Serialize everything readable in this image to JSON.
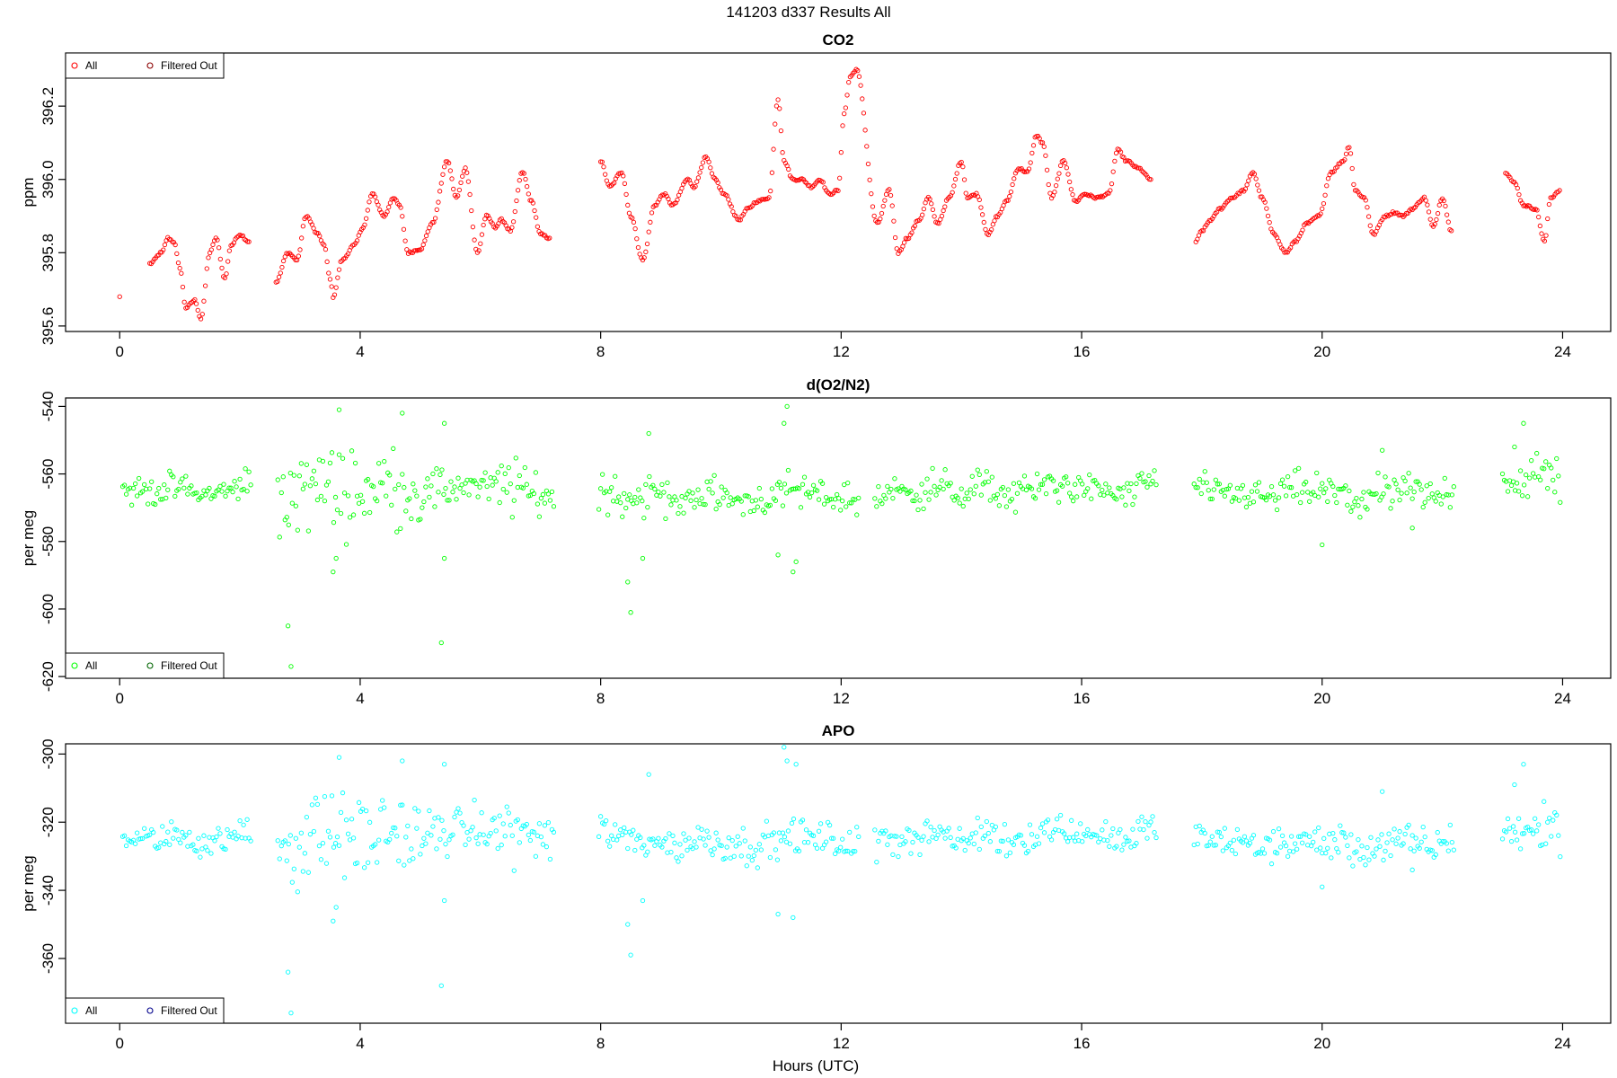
{
  "figure": {
    "title": "141203   d337   Results All",
    "xlabel": "Hours (UTC)"
  },
  "chart_data": [
    {
      "type": "scatter",
      "title": "CO2",
      "xlabel": "",
      "ylabel": "ppm",
      "xlim": [
        -0.9,
        24.8
      ],
      "ylim": [
        395.585,
        396.345
      ],
      "xticks": [
        0,
        4,
        8,
        12,
        16,
        20,
        24
      ],
      "yticks": [
        395.6,
        395.8,
        396.0,
        396.2
      ],
      "ytick_labels": [
        "395.6",
        "395.8",
        "396.0",
        "396.2"
      ],
      "legend": {
        "position": "top-left",
        "entries": [
          {
            "label": "All",
            "color": "#ff0000"
          },
          {
            "label": "Filtered Out",
            "color": "#8b0000"
          }
        ]
      },
      "marker_color": "#ff0000",
      "series": [
        {
          "name": "All",
          "x": [
            0.0,
            0.5,
            0.7,
            0.8,
            0.9,
            1.0,
            1.1,
            1.25,
            1.35,
            1.5,
            1.6,
            1.75,
            1.85,
            2.0,
            2.15,
            2.6,
            2.8,
            2.95,
            3.1,
            3.3,
            3.4,
            3.5,
            3.55,
            3.7,
            3.9,
            4.05,
            4.2,
            4.4,
            4.55,
            4.65,
            4.8,
            5.0,
            5.2,
            5.45,
            5.6,
            5.75,
            5.95,
            6.1,
            6.25,
            6.35,
            6.5,
            6.7,
            6.85,
            7.0,
            7.15,
            8.0,
            8.15,
            8.35,
            8.5,
            8.7,
            8.9,
            9.05,
            9.2,
            9.45,
            9.55,
            9.75,
            9.9,
            10.05,
            10.3,
            10.45,
            10.6,
            10.8,
            10.95,
            11.05,
            11.2,
            11.35,
            11.5,
            11.65,
            11.8,
            11.95,
            12.05,
            12.15,
            12.25,
            12.6,
            12.8,
            12.95,
            13.1,
            13.3,
            13.45,
            13.6,
            13.8,
            14.0,
            14.1,
            14.25,
            14.45,
            14.6,
            14.75,
            14.95,
            15.1,
            15.25,
            15.35,
            15.5,
            15.7,
            15.9,
            16.05,
            16.25,
            16.45,
            16.6,
            16.75,
            16.95,
            17.15,
            17.9,
            18.0,
            18.15,
            18.3,
            18.5,
            18.7,
            18.85,
            19.0,
            19.2,
            19.4,
            19.55,
            19.75,
            19.95,
            20.15,
            20.35,
            20.45,
            20.55,
            20.7,
            20.85,
            21.05,
            21.2,
            21.35,
            21.5,
            21.7,
            21.85,
            22.0,
            22.15,
            23.05,
            23.2,
            23.35,
            23.55,
            23.7,
            23.8,
            23.95
          ],
          "y": [
            395.68,
            395.77,
            395.8,
            395.84,
            395.83,
            395.76,
            395.65,
            395.67,
            395.62,
            395.8,
            395.84,
            395.73,
            395.82,
            395.85,
            395.83,
            395.72,
            395.8,
            395.78,
            395.9,
            395.85,
            395.82,
            395.73,
            395.68,
            395.78,
            395.82,
            395.87,
            395.96,
            395.9,
            395.95,
            395.93,
            395.8,
            395.81,
            395.88,
            396.05,
            395.95,
            396.03,
            395.8,
            395.9,
            395.87,
            395.89,
            395.86,
            396.02,
            395.94,
            395.85,
            395.84,
            396.05,
            395.98,
            396.02,
            395.9,
            395.78,
            395.93,
            395.96,
            395.93,
            396.0,
            395.98,
            396.06,
            396.0,
            395.96,
            395.89,
            395.92,
            395.94,
            395.95,
            396.22,
            396.05,
            396.0,
            396.0,
            395.98,
            396.0,
            395.96,
            395.97,
            396.18,
            396.28,
            396.3,
            395.88,
            395.97,
            395.8,
            395.84,
            395.89,
            395.95,
            395.88,
            395.95,
            396.05,
            395.95,
            395.96,
            395.85,
            395.9,
            395.94,
            396.03,
            396.02,
            396.12,
            396.1,
            395.95,
            396.05,
            395.94,
            395.96,
            395.95,
            395.96,
            396.08,
            396.05,
            396.03,
            396.0,
            395.83,
            395.86,
            395.89,
            395.92,
            395.95,
            395.97,
            396.02,
            395.95,
            395.85,
            395.8,
            395.83,
            395.88,
            395.9,
            396.02,
            396.05,
            396.09,
            395.97,
            395.95,
            395.85,
            395.9,
            395.91,
            395.9,
            395.92,
            395.95,
            395.87,
            395.95,
            395.86,
            396.02,
            395.99,
            395.93,
            395.92,
            395.83,
            395.95,
            395.97
          ]
        }
      ]
    },
    {
      "type": "scatter",
      "title": "d(O2/N2)",
      "xlabel": "",
      "ylabel": "per meg",
      "xlim": [
        -0.9,
        24.8
      ],
      "ylim": [
        -620.5,
        -537.5
      ],
      "xticks": [
        0,
        4,
        8,
        12,
        16,
        20,
        24
      ],
      "yticks": [
        -620,
        -600,
        -580,
        -560,
        -540
      ],
      "ytick_labels": [
        "-620",
        "-600",
        "-580",
        "-560",
        "-540"
      ],
      "legend": {
        "position": "bottom-left",
        "entries": [
          {
            "label": "All",
            "color": "#00ff00"
          },
          {
            "label": "Filtered Out",
            "color": "#006400"
          }
        ]
      },
      "marker_color": "#00ff00",
      "series": [
        {
          "name": "All",
          "center": [
            -565,
            -565,
            -564,
            -566,
            -565,
            -563,
            -565,
            -566,
            -563,
            -564,
            -565,
            -563,
            -566,
            -565,
            -563,
            -564,
            -563,
            -566,
            -567,
            -566,
            -565,
            -567,
            -566,
            -568,
            -566,
            -567,
            -568,
            -567,
            -565,
            -566,
            -567,
            -568,
            -566,
            -565,
            -564,
            -566,
            -564,
            -566,
            -565,
            -563,
            -564,
            -565,
            -566,
            -562,
            -563,
            -564,
            -566,
            -566,
            -567,
            -565,
            -565,
            -566,
            -568,
            -566,
            -565,
            -567,
            -564,
            -563,
            -561,
            -562,
            -560
          ],
          "spread": [
            3,
            3,
            3,
            3,
            3,
            4,
            10,
            10,
            8,
            10,
            9,
            8,
            7,
            5,
            5,
            4,
            7,
            5,
            5,
            5,
            5,
            4,
            5,
            4,
            4,
            4,
            4,
            4,
            4,
            4,
            4,
            4,
            4,
            4,
            4,
            3,
            4,
            4,
            4,
            4,
            3,
            3,
            3,
            3,
            4,
            4,
            3,
            3,
            4,
            4,
            4,
            4,
            4,
            4,
            4,
            4,
            4,
            5,
            5,
            6,
            6
          ],
          "gaps": [
            [
              7.25,
              7.95
            ],
            [
              12.3,
              12.55
            ],
            [
              17.25,
              17.85
            ],
            [
              22.2,
              23.0
            ]
          ],
          "outliers": [
            [
              2.8,
              -605
            ],
            [
              2.85,
              -617
            ],
            [
              3.6,
              -585
            ],
            [
              3.55,
              -589
            ],
            [
              3.65,
              -541
            ],
            [
              4.7,
              -542
            ],
            [
              5.4,
              -545
            ],
            [
              5.35,
              -610
            ],
            [
              5.4,
              -585
            ],
            [
              8.45,
              -592
            ],
            [
              8.5,
              -601
            ],
            [
              8.8,
              -548
            ],
            [
              8.7,
              -585
            ],
            [
              10.95,
              -584
            ],
            [
              11.05,
              -545
            ],
            [
              11.1,
              -540
            ],
            [
              11.2,
              -589
            ],
            [
              11.25,
              -586
            ],
            [
              20.0,
              -581
            ],
            [
              21.0,
              -553
            ],
            [
              21.5,
              -576
            ],
            [
              23.2,
              -552
            ],
            [
              23.35,
              -545
            ]
          ]
        }
      ]
    },
    {
      "type": "scatter",
      "title": "APO",
      "xlabel": "Hours (UTC)",
      "ylabel": "per meg",
      "xlim": [
        -0.9,
        24.8
      ],
      "ylim": [
        -379,
        -297
      ],
      "xticks": [
        0,
        4,
        8,
        12,
        16,
        20,
        24
      ],
      "yticks": [
        -360,
        -340,
        -320,
        -300
      ],
      "ytick_labels": [
        "-360",
        "-340",
        "-320",
        "-300"
      ],
      "legend": {
        "position": "bottom-left",
        "entries": [
          {
            "label": "All",
            "color": "#00ffff"
          },
          {
            "label": "Filtered Out",
            "color": "#00008b"
          }
        ]
      },
      "marker_color": "#00ffff",
      "series": [
        {
          "name": "All",
          "center": [
            -325,
            -325,
            -324,
            -326,
            -325,
            -323,
            -326,
            -326,
            -323,
            -323,
            -325,
            -322,
            -325,
            -323,
            -322,
            -323,
            -322,
            -324,
            -325,
            -324,
            -323,
            -325,
            -325,
            -327,
            -325,
            -326,
            -327,
            -326,
            -324,
            -325,
            -326,
            -327,
            -325,
            -324,
            -323,
            -326,
            -323,
            -325,
            -324,
            -322,
            -323,
            -324,
            -325,
            -322,
            -323,
            -324,
            -326,
            -326,
            -327,
            -326,
            -326,
            -326,
            -328,
            -327,
            -326,
            -327,
            -325,
            -324,
            -322,
            -323,
            -321
          ],
          "spread": [
            3,
            3,
            3,
            3,
            3,
            4,
            10,
            10,
            8,
            10,
            9,
            8,
            7,
            5,
            5,
            4,
            7,
            5,
            5,
            5,
            5,
            4,
            5,
            4,
            4,
            4,
            4,
            4,
            4,
            4,
            4,
            4,
            4,
            4,
            4,
            3,
            4,
            4,
            4,
            4,
            3,
            3,
            3,
            3,
            4,
            4,
            3,
            3,
            4,
            4,
            4,
            4,
            4,
            4,
            4,
            4,
            4,
            5,
            5,
            6,
            6
          ],
          "gaps": [
            [
              7.25,
              7.95
            ],
            [
              12.3,
              12.55
            ],
            [
              17.25,
              17.85
            ],
            [
              22.2,
              23.0
            ]
          ],
          "outliers": [
            [
              2.8,
              -364
            ],
            [
              2.85,
              -376
            ],
            [
              3.6,
              -345
            ],
            [
              3.55,
              -349
            ],
            [
              3.65,
              -301
            ],
            [
              4.7,
              -302
            ],
            [
              5.4,
              -303
            ],
            [
              5.35,
              -368
            ],
            [
              5.4,
              -343
            ],
            [
              8.45,
              -350
            ],
            [
              8.5,
              -359
            ],
            [
              8.8,
              -306
            ],
            [
              8.7,
              -343
            ],
            [
              10.95,
              -347
            ],
            [
              11.05,
              -298
            ],
            [
              11.1,
              -302
            ],
            [
              11.2,
              -348
            ],
            [
              11.25,
              -303
            ],
            [
              20.0,
              -339
            ],
            [
              21.0,
              -311
            ],
            [
              21.5,
              -334
            ],
            [
              23.2,
              -309
            ],
            [
              23.35,
              -303
            ]
          ]
        }
      ]
    }
  ]
}
